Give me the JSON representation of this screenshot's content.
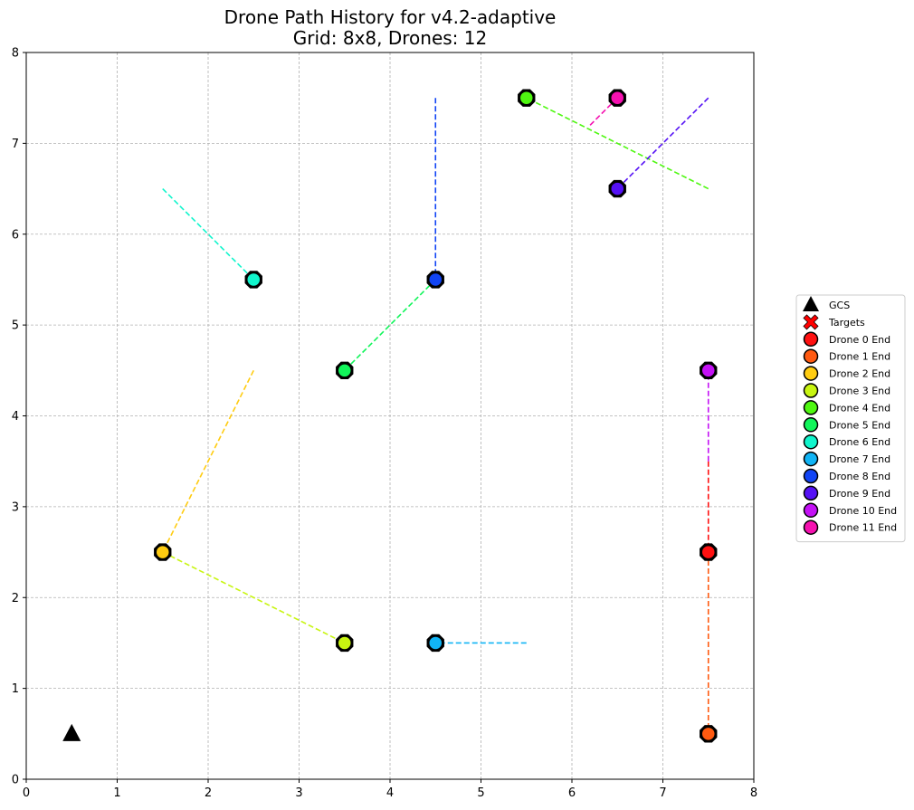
{
  "chart_data": {
    "type": "scatter",
    "title": "Drone Path History for v4.2-adaptive",
    "subtitle": "Grid: 8x8, Drones: 12",
    "xlabel": "",
    "ylabel": "",
    "xlim": [
      0,
      8
    ],
    "ylim": [
      0,
      8
    ],
    "xticks": [
      "0",
      "1",
      "2",
      "3",
      "4",
      "5",
      "6",
      "7",
      "8"
    ],
    "yticks": [
      "0",
      "1",
      "2",
      "3",
      "4",
      "5",
      "6",
      "7",
      "8"
    ],
    "grid": true,
    "legend_position": "right",
    "gcs": {
      "label": "GCS",
      "x": 0.5,
      "y": 0.5,
      "color": "#000000"
    },
    "targets": {
      "label": "Targets",
      "color": "#ff0000"
    },
    "drones": [
      {
        "name": "Drone 0 End",
        "color": "#ff1111",
        "path": [
          [
            7.5,
            3.5
          ],
          [
            7.5,
            2.5
          ]
        ]
      },
      {
        "name": "Drone 1 End",
        "color": "#ff5a11",
        "path": [
          [
            7.5,
            2.5
          ],
          [
            7.5,
            0.5
          ]
        ]
      },
      {
        "name": "Drone 2 End",
        "color": "#ffcc11",
        "path": [
          [
            2.5,
            4.5
          ],
          [
            1.5,
            2.5
          ]
        ]
      },
      {
        "name": "Drone 3 End",
        "color": "#c8f511",
        "path": [
          [
            1.5,
            2.5
          ],
          [
            3.5,
            1.5
          ]
        ]
      },
      {
        "name": "Drone 4 End",
        "color": "#4ff711",
        "path": [
          [
            7.5,
            6.5
          ],
          [
            5.5,
            7.5
          ]
        ]
      },
      {
        "name": "Drone 5 End",
        "color": "#11f55a",
        "path": [
          [
            4.5,
            5.5
          ],
          [
            3.5,
            4.5
          ]
        ]
      },
      {
        "name": "Drone 6 End",
        "color": "#11f5cc",
        "path": [
          [
            1.5,
            6.5
          ],
          [
            2.5,
            5.5
          ]
        ]
      },
      {
        "name": "Drone 7 End",
        "color": "#11b4f5",
        "path": [
          [
            5.5,
            1.5
          ],
          [
            4.5,
            1.5
          ]
        ]
      },
      {
        "name": "Drone 8 End",
        "color": "#1144f5",
        "path": [
          [
            4.5,
            7.5
          ],
          [
            4.5,
            5.5
          ]
        ]
      },
      {
        "name": "Drone 9 End",
        "color": "#5511f5",
        "path": [
          [
            7.5,
            7.5
          ],
          [
            6.5,
            6.5
          ]
        ]
      },
      {
        "name": "Drone 10 End",
        "color": "#c411f5",
        "path": [
          [
            7.5,
            3.5
          ],
          [
            7.5,
            4.5
          ]
        ]
      },
      {
        "name": "Drone 11 End",
        "color": "#f511b0",
        "path": [
          [
            6.2,
            7.2
          ],
          [
            6.5,
            7.5
          ]
        ]
      }
    ]
  }
}
